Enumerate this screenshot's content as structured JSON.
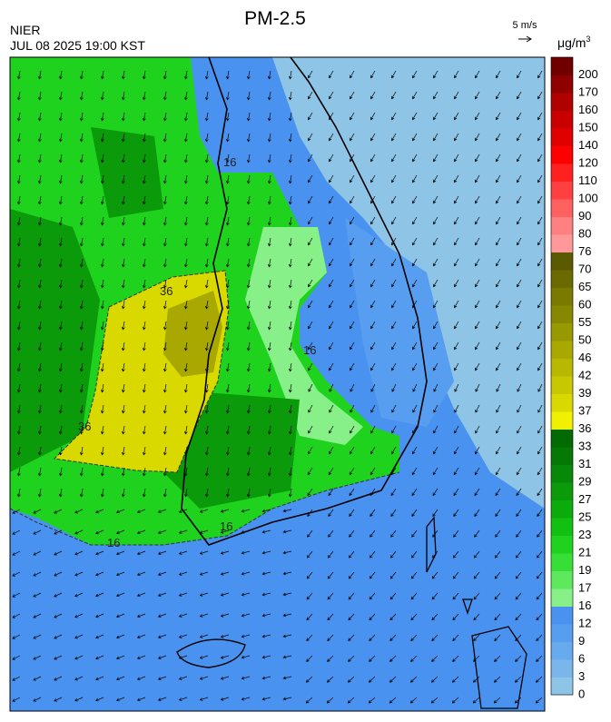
{
  "header": {
    "title": "PM-2.5",
    "agency": "NIER",
    "datetime": "JUL 08 2025 19:00 KST",
    "wind_scale": "5 m/s",
    "unit": "μg/m",
    "unit_exponent": "3"
  },
  "colorbar": {
    "levels": [
      0,
      3,
      6,
      9,
      12,
      16,
      17,
      19,
      21,
      23,
      25,
      27,
      29,
      31,
      33,
      36,
      37,
      39,
      42,
      46,
      50,
      55,
      60,
      65,
      70,
      76,
      80,
      90,
      100,
      110,
      120,
      140,
      150,
      160,
      170,
      200
    ],
    "colors": [
      "#8ec4e6",
      "#7ab6ea",
      "#68aaee",
      "#589ef0",
      "#4a92f0",
      "#88f088",
      "#5ee85e",
      "#38de38",
      "#1ed21e",
      "#12c012",
      "#0cab0c",
      "#0a9a0a",
      "#088808",
      "#067806",
      "#046a04",
      "#f0f000",
      "#d9d900",
      "#c8c800",
      "#b8b800",
      "#a8a800",
      "#989800",
      "#888800",
      "#7a7a00",
      "#6a6a00",
      "#5a5a00",
      "#ff9999",
      "#ff8080",
      "#ff6060",
      "#ff4040",
      "#ff2020",
      "#ff0000",
      "#e00000",
      "#c80000",
      "#b00000",
      "#900000",
      "#700000"
    ]
  },
  "map": {
    "contour_labels": [
      36,
      36,
      16,
      16,
      16,
      16
    ]
  }
}
